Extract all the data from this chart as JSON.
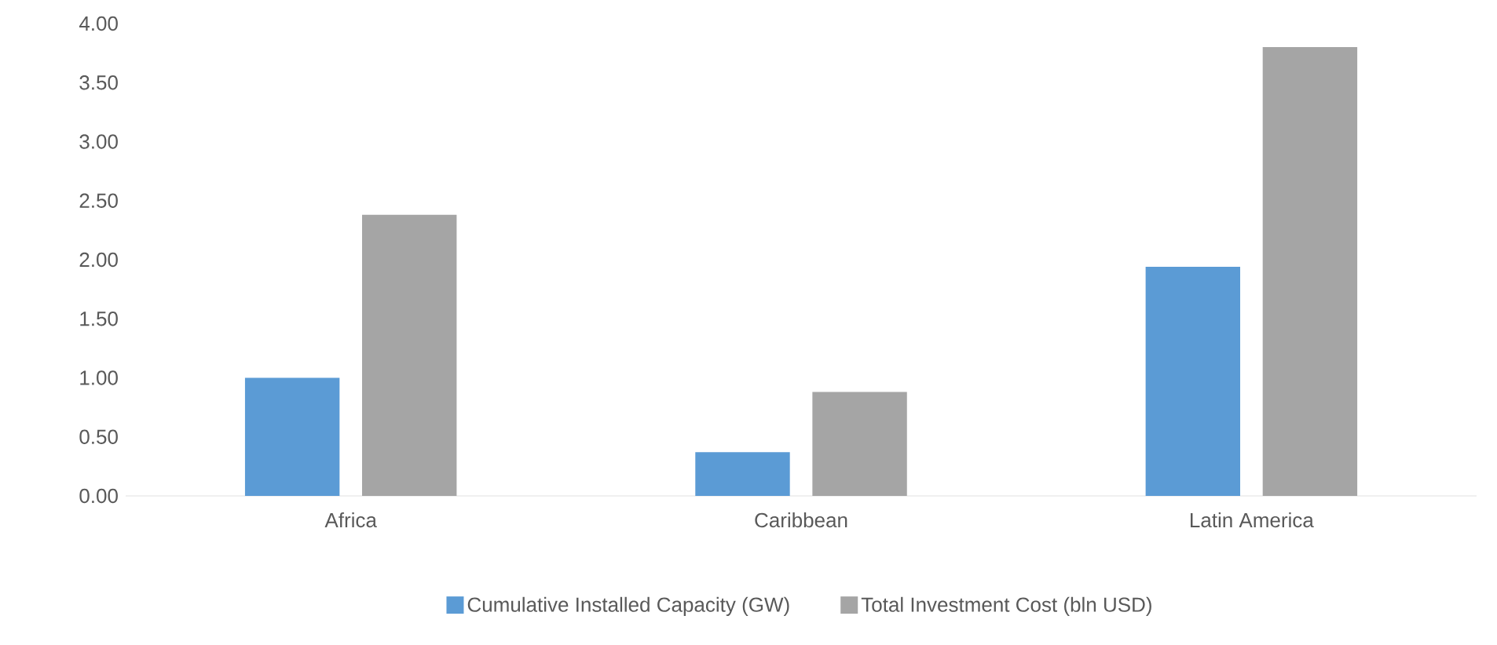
{
  "chart_data": {
    "type": "bar",
    "categories": [
      "Africa",
      "Caribbean",
      "Latin America"
    ],
    "series": [
      {
        "name": "Cumulative Installed Capacity (GW)",
        "color": "#5b9bd5",
        "values": [
          1.0,
          0.37,
          1.94
        ]
      },
      {
        "name": "Total Investment Cost (bln USD)",
        "color": "#a5a5a5",
        "values": [
          2.38,
          0.88,
          3.8
        ]
      }
    ],
    "ylim": [
      0,
      4
    ],
    "yticks": [
      {
        "value": 0,
        "label": "0.00"
      },
      {
        "value": 0.5,
        "label": "0.50"
      },
      {
        "value": 1,
        "label": "1.00"
      },
      {
        "value": 1.5,
        "label": "1.50"
      },
      {
        "value": 2,
        "label": "2.00"
      },
      {
        "value": 2.5,
        "label": "2.50"
      },
      {
        "value": 3,
        "label": "3.00"
      },
      {
        "value": 3.5,
        "label": "3.50"
      },
      {
        "value": 4,
        "label": "4.00"
      }
    ],
    "grid": false,
    "legend": "bottom"
  }
}
